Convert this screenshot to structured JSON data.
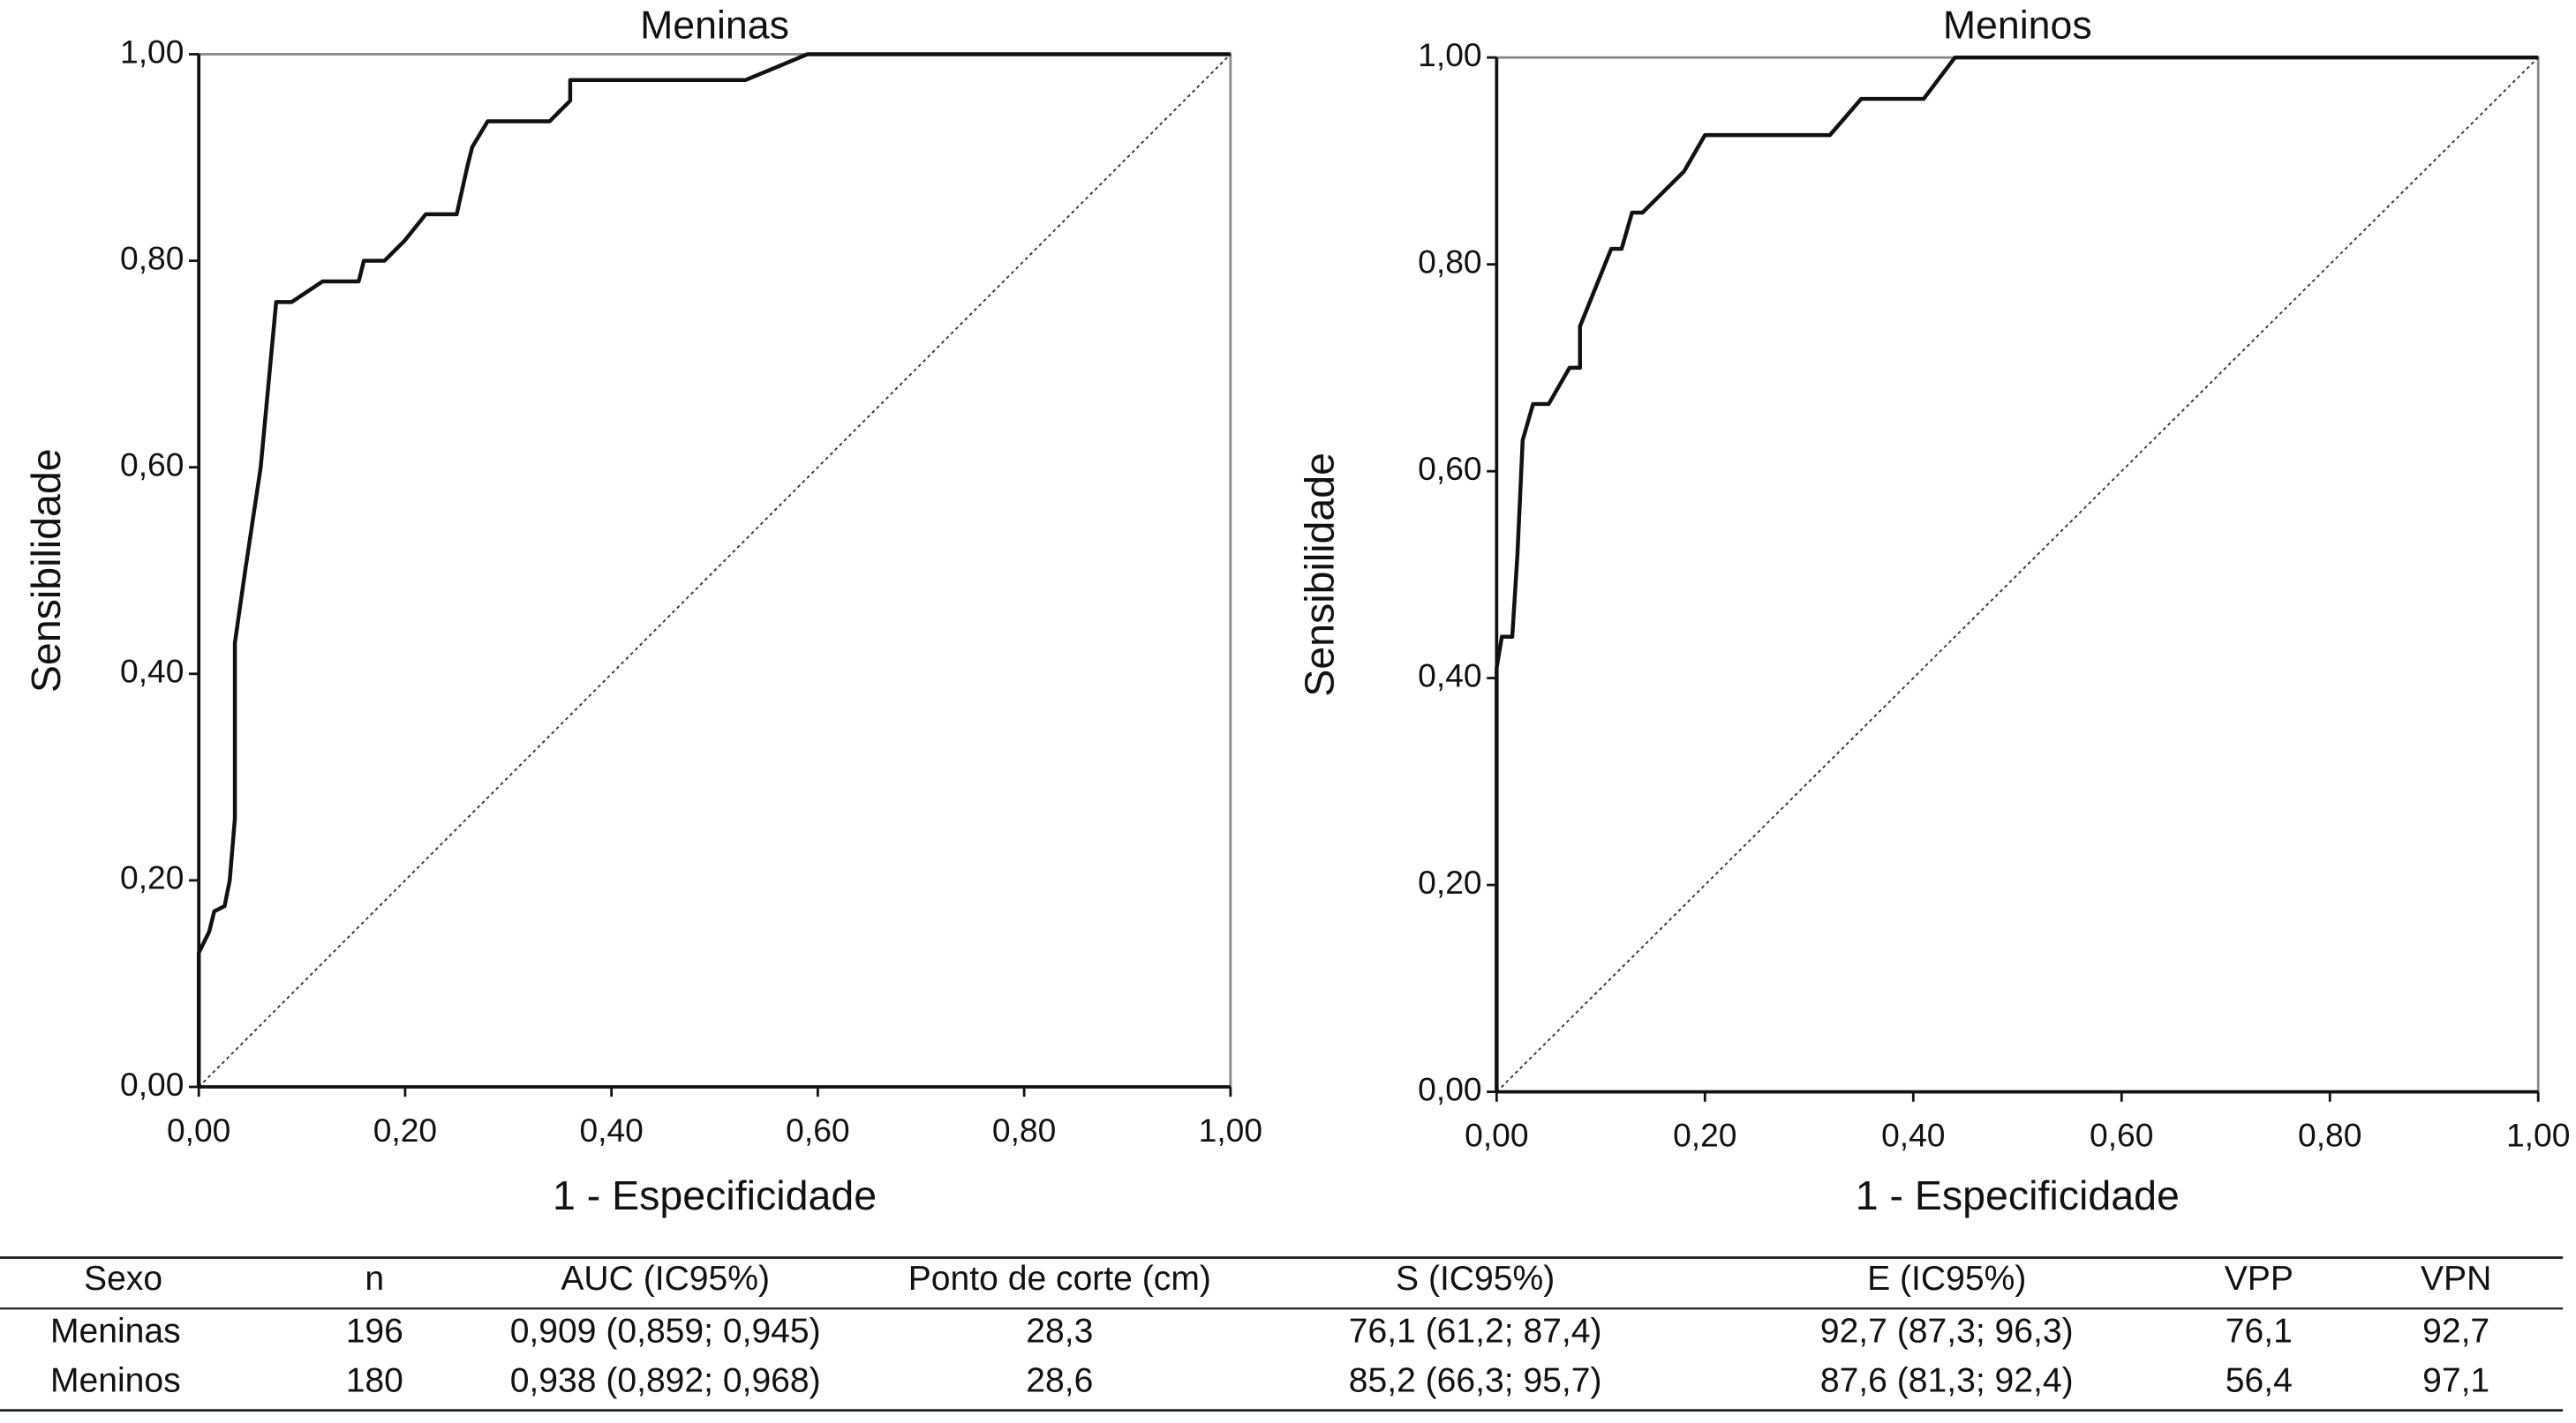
{
  "chart_data": [
    {
      "type": "line",
      "title": "Meninas",
      "xlabel": "1 - Especificidade",
      "ylabel": "Sensibilidade",
      "x": [
        0,
        0,
        0.01,
        0.015,
        0.025,
        0.03,
        0.035,
        0.035,
        0.045,
        0.06,
        0.075,
        0.09,
        0.12,
        0.155,
        0.16,
        0.18,
        0.2,
        0.22,
        0.25,
        0.26,
        0.265,
        0.28,
        0.34,
        0.36,
        0.36,
        0.53,
        0.59,
        1
      ],
      "values": [
        0,
        0.13,
        0.15,
        0.17,
        0.175,
        0.2,
        0.26,
        0.43,
        0.5,
        0.6,
        0.76,
        0.76,
        0.78,
        0.78,
        0.8,
        0.8,
        0.82,
        0.845,
        0.845,
        0.89,
        0.91,
        0.935,
        0.935,
        0.955,
        0.975,
        0.975,
        1,
        1
      ],
      "color": "#111111",
      "xlim": [
        0,
        1
      ],
      "ylim": [
        0,
        1
      ],
      "xticks": [
        {
          "value": 0,
          "label": "0,00"
        },
        {
          "value": 0.2,
          "label": "0,20"
        },
        {
          "value": 0.4,
          "label": "0,40"
        },
        {
          "value": 0.6,
          "label": "0,60"
        },
        {
          "value": 0.8,
          "label": "0,80"
        },
        {
          "value": 1,
          "label": "1,00"
        }
      ],
      "yticks": [
        {
          "value": 0,
          "label": "0,00"
        },
        {
          "value": 0.2,
          "label": "0,20"
        },
        {
          "value": 0.4,
          "label": "0,40"
        },
        {
          "value": 0.6,
          "label": "0,60"
        },
        {
          "value": 0.8,
          "label": "0,80"
        },
        {
          "value": 1,
          "label": "1,00"
        }
      ]
    },
    {
      "type": "line",
      "title": "Meninos",
      "xlabel": "1 - Especificidade",
      "ylabel": "Sensibilidade",
      "x": [
        0,
        0,
        0.005,
        0.015,
        0.02,
        0.025,
        0.035,
        0.05,
        0.07,
        0.08,
        0.08,
        0.1,
        0.11,
        0.12,
        0.13,
        0.14,
        0.18,
        0.2,
        0.32,
        0.35,
        0.41,
        0.44,
        1
      ],
      "values": [
        0,
        0.41,
        0.44,
        0.44,
        0.52,
        0.63,
        0.665,
        0.665,
        0.7,
        0.7,
        0.74,
        0.79,
        0.815,
        0.815,
        0.85,
        0.85,
        0.89,
        0.925,
        0.925,
        0.96,
        0.96,
        1,
        1
      ],
      "color": "#111111",
      "xlim": [
        0,
        1
      ],
      "ylim": [
        0,
        1
      ],
      "xticks": [
        {
          "value": 0,
          "label": "0,00"
        },
        {
          "value": 0.2,
          "label": "0,20"
        },
        {
          "value": 0.4,
          "label": "0,40"
        },
        {
          "value": 0.6,
          "label": "0,60"
        },
        {
          "value": 0.8,
          "label": "0,80"
        },
        {
          "value": 1,
          "label": "1,00"
        }
      ],
      "yticks": [
        {
          "value": 0,
          "label": "0,00"
        },
        {
          "value": 0.2,
          "label": "0,20"
        },
        {
          "value": 0.4,
          "label": "0,40"
        },
        {
          "value": 0.6,
          "label": "0,60"
        },
        {
          "value": 0.8,
          "label": "0,80"
        },
        {
          "value": 1,
          "label": "1,00"
        }
      ]
    }
  ],
  "table": {
    "header": [
      "Sexo",
      "n",
      "AUC (IC95%)",
      "Ponto de corte (cm)",
      "S (IC95%)",
      "E (IC95%)",
      "VPP",
      "VPN"
    ],
    "rows": [
      [
        "Meninas",
        "196",
        "0,909 (0,859; 0,945)",
        "28,3",
        "76,1 (61,2; 87,4)",
        "92,7 (87,3; 96,3)",
        "76,1",
        "92,7"
      ],
      [
        "Meninos",
        "180",
        "0,938 (0,892; 0,968)",
        "28,6",
        "85,2 (66,3; 95,7)",
        "87,6 (81,3; 92,4)",
        "56,4",
        "97,1"
      ]
    ]
  }
}
